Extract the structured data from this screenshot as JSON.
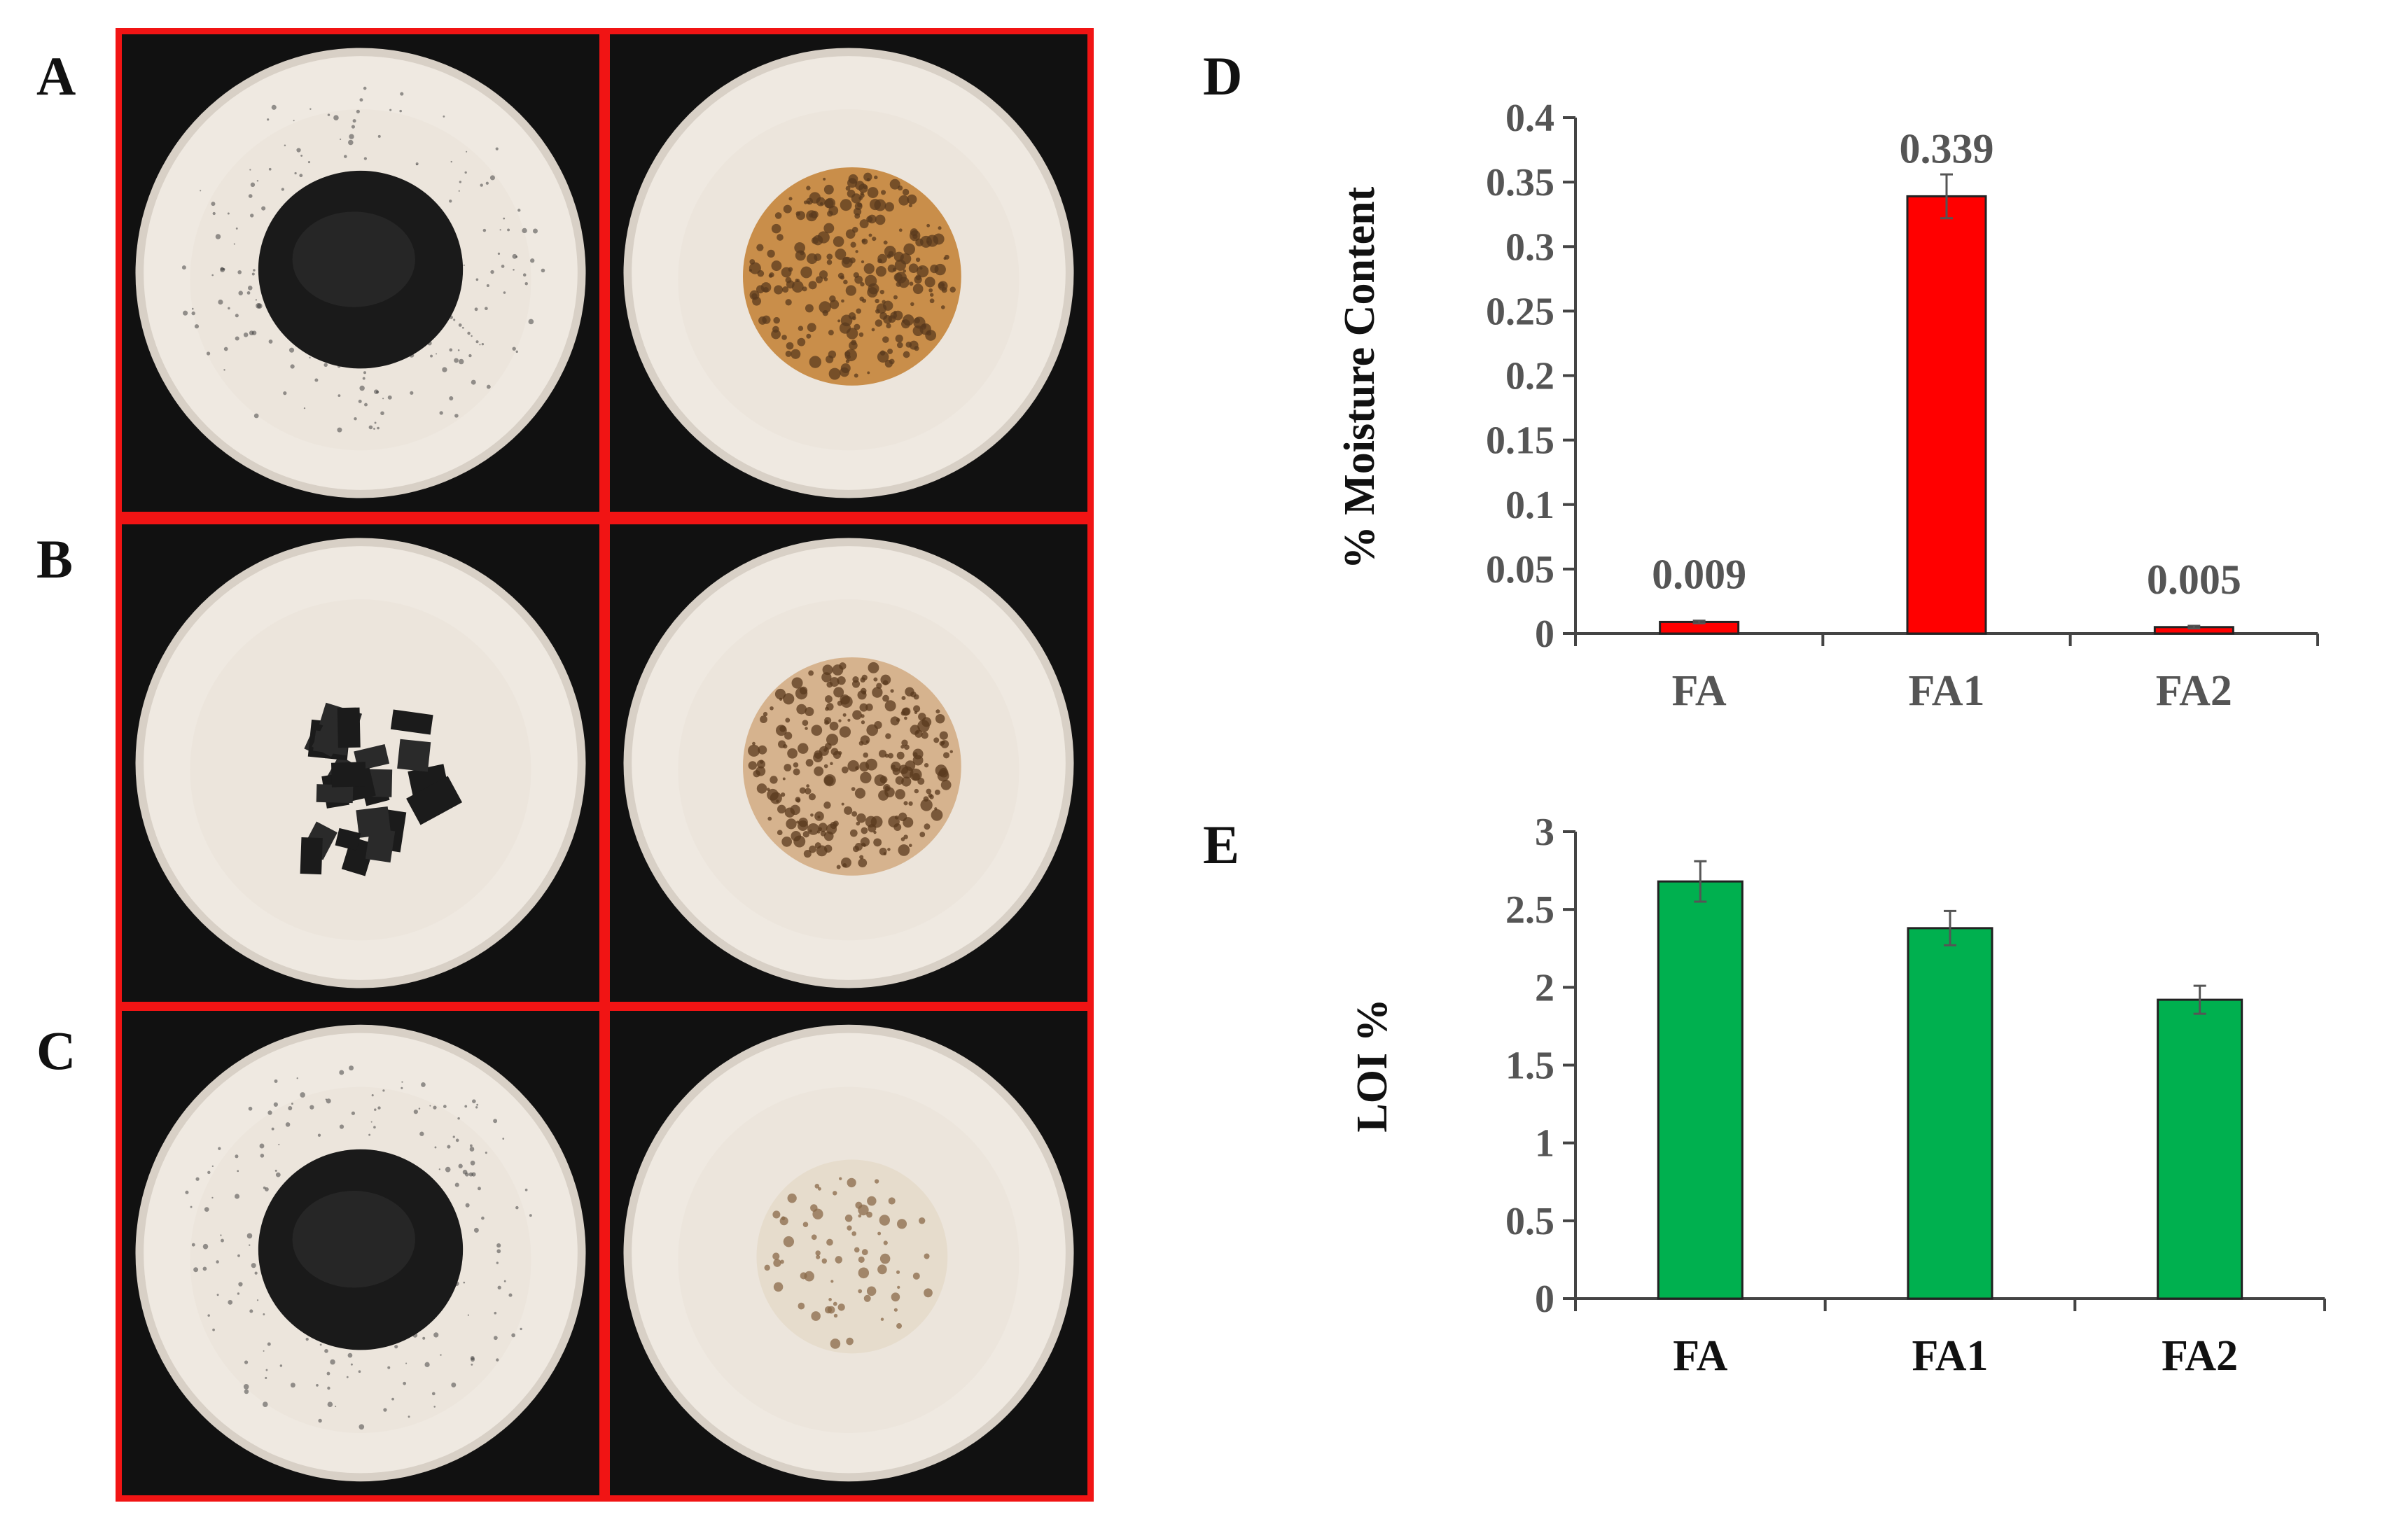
{
  "panels": {
    "a": {
      "letter": "A"
    },
    "b": {
      "letter": "B"
    },
    "c": {
      "letter": "C"
    },
    "d": {
      "letter": "D"
    },
    "e": {
      "letter": "E"
    }
  },
  "colors": {
    "photo_border": "#f11414",
    "moisture_bar": "#ff0000",
    "loi_bar": "#00b04f",
    "photo_bg": "#111111",
    "bowl": "#efe9e1"
  },
  "photos": [
    {
      "row": "A",
      "left": "black-powder-bowl",
      "right": "brown-mottled-bowl"
    },
    {
      "row": "B",
      "left": "black-clumps-bowl",
      "right": "tan-mottled-bowl"
    },
    {
      "row": "C",
      "left": "black-powder-bowl",
      "right": "light-speckled-bowl"
    }
  ],
  "chart_data": [
    {
      "id": "D",
      "type": "bar",
      "categories": [
        "FA",
        "FA1",
        "FA2"
      ],
      "values": [
        0.009,
        0.339,
        0.005
      ],
      "errors": [
        0.001,
        0.017,
        0.001
      ],
      "data_labels": [
        "0.009",
        "0.339",
        "0.005"
      ],
      "ylabel": "% Moisture Content",
      "xlabel": "",
      "ylim": [
        0,
        0.4
      ],
      "yticks": [
        0,
        0.05,
        0.1,
        0.15,
        0.2,
        0.25,
        0.3,
        0.35,
        0.4
      ],
      "ytick_labels": [
        "0",
        "0.05",
        "0.1",
        "0.15",
        "0.2",
        "0.25",
        "0.3",
        "0.35",
        "0.4"
      ],
      "grid": false,
      "legend": "none"
    },
    {
      "id": "E",
      "type": "bar",
      "categories": [
        "FA",
        "FA1",
        "FA2"
      ],
      "values": [
        2.68,
        2.38,
        1.92
      ],
      "errors": [
        0.13,
        0.11,
        0.09
      ],
      "ylabel": "LOI %",
      "xlabel": "",
      "ylim": [
        0,
        3
      ],
      "yticks": [
        0,
        0.5,
        1,
        1.5,
        2,
        2.5,
        3
      ],
      "ytick_labels": [
        "0",
        "0.5",
        "1",
        "1.5",
        "2",
        "2.5",
        "3"
      ],
      "grid": false,
      "legend": "none"
    }
  ]
}
